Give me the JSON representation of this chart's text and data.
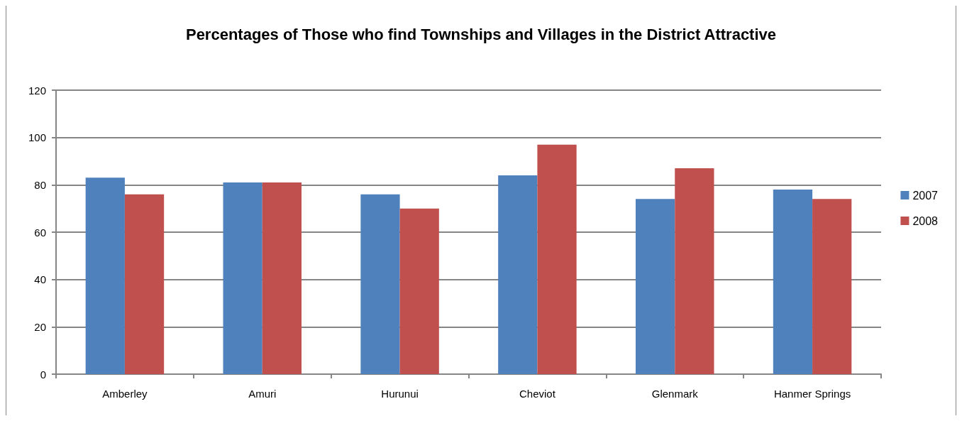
{
  "chart_data": {
    "type": "bar",
    "title": "Percentages of Those who find Townships and Villages in the District Attractive",
    "categories": [
      "Amberley",
      "Amuri",
      "Hurunui",
      "Cheviot",
      "Glenmark",
      "Hanmer Springs"
    ],
    "series": [
      {
        "name": "2007",
        "color": "#4f81bd",
        "values": [
          83,
          81,
          76,
          84,
          74,
          78
        ]
      },
      {
        "name": "2008",
        "color": "#c0504d",
        "values": [
          76,
          81,
          70,
          97,
          87,
          74
        ]
      }
    ],
    "ylim": [
      0,
      120
    ],
    "yticks": [
      0,
      20,
      40,
      60,
      80,
      100,
      120
    ],
    "grid": "y",
    "legend": "right"
  }
}
